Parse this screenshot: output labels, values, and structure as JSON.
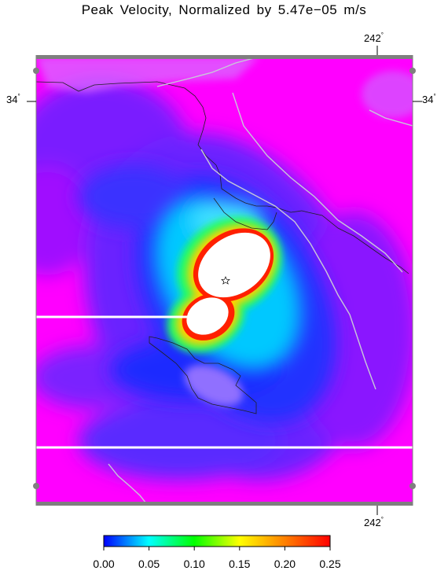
{
  "title": "Peak Velocity,  Normalized  by  5.47e−05  m/s",
  "map": {
    "lon_label_top": "242",
    "lon_label_bottom": "242",
    "lat_label_left": "34",
    "lat_label_right": "34",
    "degree_symbol": "°",
    "epicenter_icon": "star-icon"
  },
  "colorbar": {
    "ticks": [
      "0.00",
      "0.05",
      "0.10",
      "0.15",
      "0.20",
      "0.25"
    ],
    "min": 0.0,
    "max": 0.25,
    "colors": [
      "#0000ff",
      "#00ffff",
      "#00ff00",
      "#ffff00",
      "#ff0000"
    ]
  },
  "colors": {
    "background": "#ff00ff",
    "near_field": "#5a2cff",
    "saturated": "#ffffff",
    "frame": "#7f7f7f"
  }
}
